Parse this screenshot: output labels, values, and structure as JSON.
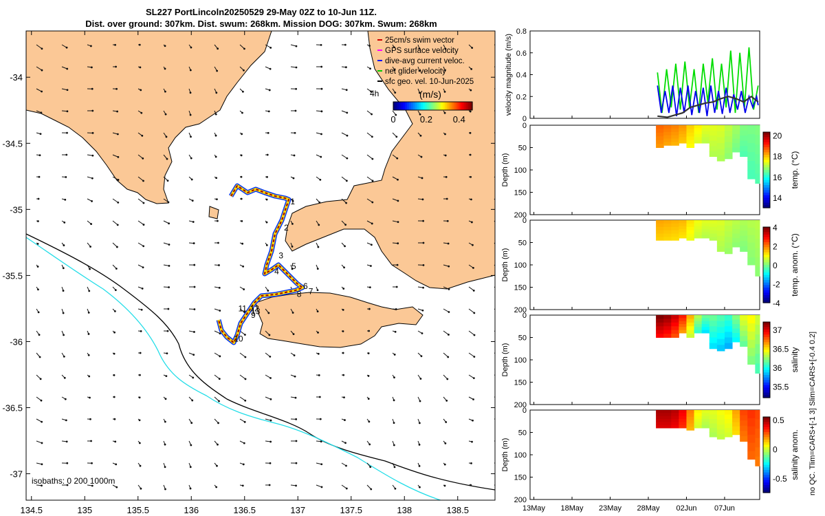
{
  "title_line1": "SL227 PortLincoln20250529 29-May 02Z to 10-Jun 11Z.",
  "title_line2": "Dist. over ground: 307km. Dist. swum: 268km. Mission DOG: 307km. Swum: 268km",
  "map": {
    "lon_ticks": [
      "134.5",
      "135",
      "135.5",
      "136",
      "136.5",
      "137",
      "137.5",
      "138",
      "138.5"
    ],
    "lat_ticks": [
      "-34",
      "-34.5",
      "-35",
      "-35.5",
      "-36",
      "-36.5",
      "-37"
    ],
    "xlim": [
      134.45,
      138.85
    ],
    "ylim": [
      -37.2,
      -33.65
    ],
    "legend": [
      "25cm/s swim vector",
      "GPS surface velocity",
      "dive-avg current veloc.",
      "net glider velocity",
      "sfc geo. vel. 10-Jun-2025"
    ],
    "legend_colors": [
      "#cc0000",
      "#ff00ff",
      "#0000ff",
      "#00cc00",
      "#000000"
    ],
    "colorbar_label": "(m/s)",
    "colorbar_ticks": [
      "0",
      "0.2",
      "0.4"
    ],
    "time_step_label": "4h",
    "isobaths_label": "isobaths: 0    200  1000m",
    "day_markers": [
      {
        "label": "1",
        "lon": 136.93,
        "lat": -34.94
      },
      {
        "label": "2",
        "lon": 136.87,
        "lat": -35.14
      },
      {
        "label": "3",
        "lon": 136.82,
        "lat": -35.35
      },
      {
        "label": "4",
        "lon": 136.78,
        "lat": -35.47
      },
      {
        "label": "5",
        "lon": 136.94,
        "lat": -35.43
      },
      {
        "label": "6",
        "lon": 137.05,
        "lat": -35.58
      },
      {
        "label": "7",
        "lon": 137.1,
        "lat": -35.62
      },
      {
        "label": "8",
        "lon": 136.99,
        "lat": -35.64
      },
      {
        "label": "9",
        "lon": 136.56,
        "lat": -35.8
      },
      {
        "label": "10",
        "lon": 136.4,
        "lat": -35.98
      },
      {
        "label": "11",
        "lon": 136.44,
        "lat": -35.75
      },
      {
        "label": "12",
        "lon": 136.55,
        "lat": -35.75
      },
      {
        "label": "13",
        "lon": 136.56,
        "lat": -35.77
      }
    ]
  },
  "time_axis": {
    "labels": [
      "13May",
      "18May",
      "23May",
      "28May",
      "02Jun",
      "07Jun"
    ],
    "days": [
      0,
      5,
      10,
      15,
      20,
      25
    ],
    "range_days": [
      -0.5,
      29.6
    ]
  },
  "chart_data": [
    {
      "type": "line",
      "title": "",
      "ylabel": "velocity magnitude (m/s)",
      "ylim": [
        0,
        0.8
      ],
      "yticks": [
        "0",
        "0.2",
        "0.4",
        "0.6",
        "0.8"
      ],
      "series": [
        {
          "name": "net glider velocity",
          "color": "#00dd00",
          "x": [
            16.2,
            16.8,
            17.4,
            18.0,
            18.6,
            19.2,
            19.8,
            20.4,
            21.0,
            21.6,
            22.2,
            22.8,
            23.4,
            24.0,
            24.6,
            25.2,
            25.8,
            26.4,
            27.0,
            27.6,
            28.2,
            28.8,
            29.4
          ],
          "values": [
            0.42,
            0.05,
            0.45,
            0.1,
            0.5,
            0.08,
            0.52,
            0.1,
            0.45,
            0.05,
            0.5,
            0.15,
            0.55,
            0.08,
            0.5,
            0.1,
            0.62,
            0.05,
            0.6,
            0.1,
            0.65,
            0.08,
            0.3
          ]
        },
        {
          "name": "dive-avg current veloc.",
          "color": "#0000ee",
          "x": [
            16.2,
            16.7,
            17.2,
            17.7,
            18.2,
            18.7,
            19.2,
            19.7,
            20.2,
            20.7,
            21.2,
            21.7,
            22.2,
            22.7,
            23.2,
            23.7,
            24.2,
            24.7,
            25.2,
            25.7,
            26.2,
            26.7,
            27.2,
            27.7,
            28.2,
            28.7,
            29.2,
            29.4
          ],
          "values": [
            0.3,
            0.05,
            0.25,
            0.05,
            0.3,
            0.02,
            0.28,
            0.05,
            0.3,
            0.03,
            0.25,
            0.05,
            0.28,
            0.02,
            0.3,
            0.05,
            0.25,
            0.04,
            0.28,
            0.05,
            0.22,
            0.08,
            0.25,
            0.05,
            0.2,
            0.1,
            0.2,
            0.12
          ]
        },
        {
          "name": "sfc geo. vel.",
          "color": "#333333",
          "x": [
            16.2,
            17.5,
            18.5,
            19.5,
            20.5,
            21.5,
            22.5,
            23.5,
            24.5,
            25.5,
            26.5,
            27.5,
            28.5,
            29.4
          ],
          "values": [
            0.02,
            0.01,
            0.03,
            0.05,
            0.1,
            0.12,
            0.14,
            0.15,
            0.18,
            0.2,
            0.18,
            0.15,
            0.2,
            0.15
          ]
        }
      ]
    },
    {
      "type": "heatmap",
      "ylabel": "Depth (m)",
      "ylim": [
        0,
        200
      ],
      "yticks": [
        "0",
        "50",
        "100",
        "150",
        "200"
      ],
      "colorbar_label": "temp. (°C)",
      "colorbar_ticks": [
        "14",
        "16",
        "18",
        "20"
      ],
      "clim": [
        13,
        20.3
      ],
      "x": [
        16.0,
        17.0,
        18.0,
        19.0,
        20.0,
        21.0,
        22.0,
        23.0,
        24.0,
        25.0,
        26.0,
        27.0,
        28.0,
        29.0,
        29.6
      ],
      "bottom_depth": [
        50,
        45,
        45,
        40,
        50,
        40,
        40,
        70,
        80,
        75,
        60,
        70,
        120,
        130,
        130
      ],
      "values": [
        18.5,
        18.8,
        18.3,
        18.6,
        18.0,
        17.8,
        17.5,
        17.3,
        17.4,
        17.2,
        17.0,
        16.8,
        16.5,
        16.7,
        16.6
      ]
    },
    {
      "type": "heatmap",
      "ylabel": "Depth (m)",
      "ylim": [
        0,
        200
      ],
      "yticks": [
        "0",
        "50",
        "100",
        "150",
        "200"
      ],
      "colorbar_label": "temp. anom. (°C)",
      "colorbar_ticks": [
        "-4",
        "-2",
        "0",
        "2",
        "4"
      ],
      "clim": [
        -4,
        4
      ],
      "x": [
        16.0,
        17.0,
        18.0,
        19.0,
        20.0,
        21.0,
        22.0,
        23.0,
        24.0,
        25.0,
        26.0,
        27.0,
        28.0,
        29.0,
        29.6
      ],
      "bottom_depth": [
        45,
        45,
        45,
        40,
        45,
        40,
        40,
        45,
        70,
        75,
        60,
        70,
        100,
        125,
        125
      ],
      "values": [
        1.6,
        1.8,
        1.5,
        1.7,
        1.4,
        1.0,
        0.8,
        0.7,
        0.8,
        0.6,
        0.5,
        0.4,
        0.3,
        0.5,
        0.4
      ]
    },
    {
      "type": "heatmap",
      "ylabel": "Depth (m)",
      "ylim": [
        0,
        200
      ],
      "yticks": [
        "0",
        "50",
        "100",
        "150",
        "200"
      ],
      "colorbar_label": "salinity",
      "colorbar_ticks": [
        "35.5",
        "36",
        "36.5",
        "37"
      ],
      "clim": [
        35.2,
        37.2
      ],
      "x": [
        16.0,
        17.0,
        18.0,
        19.0,
        20.0,
        21.0,
        22.0,
        23.0,
        24.0,
        25.0,
        26.0,
        27.0,
        28.0,
        29.0,
        29.6
      ],
      "bottom_depth": [
        50,
        50,
        50,
        40,
        50,
        40,
        40,
        75,
        80,
        75,
        60,
        70,
        110,
        130,
        130
      ],
      "values": [
        37.2,
        37.2,
        37.1,
        37.0,
        36.8,
        36.4,
        36.2,
        36.1,
        36.2,
        36.0,
        36.1,
        36.3,
        36.5,
        36.4,
        36.3
      ]
    },
    {
      "type": "heatmap",
      "ylabel": "Depth (m)",
      "ylim": [
        0,
        200
      ],
      "yticks": [
        "0",
        "50",
        "100",
        "150",
        "200"
      ],
      "colorbar_label": "salinity anom.",
      "colorbar_ticks": [
        "-0.5",
        "0",
        "0.5"
      ],
      "clim": [
        -0.75,
        0.55
      ],
      "side_label_1": "no QC. Tlim=CARS+[-1 3] Slim=CARS+[-0.4 0.2]",
      "x": [
        16.0,
        17.0,
        18.0,
        19.0,
        20.0,
        21.0,
        22.0,
        23.0,
        24.0,
        25.0,
        26.0,
        27.0,
        28.0,
        29.0,
        29.6
      ],
      "bottom_depth": [
        40,
        40,
        40,
        40,
        45,
        40,
        40,
        60,
        65,
        60,
        55,
        70,
        110,
        125,
        125
      ],
      "values": [
        0.5,
        0.5,
        0.5,
        0.45,
        0.35,
        0.1,
        0.05,
        0.0,
        0.05,
        0.05,
        0.1,
        0.25,
        0.35,
        0.3,
        0.3
      ]
    }
  ]
}
